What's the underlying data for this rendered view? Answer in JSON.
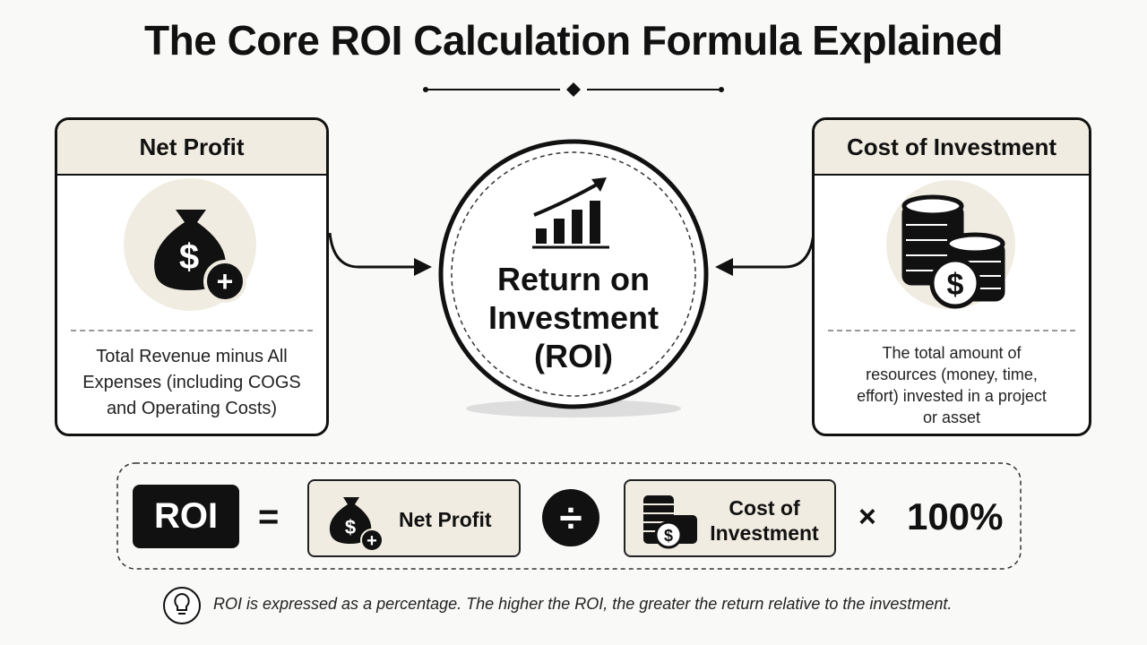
{
  "header": {
    "title": "The Core ROI Calculation Formula Explained"
  },
  "left_card": {
    "title": "Net Profit",
    "description": "Total Revenue minus All Expenses (including COGS and Operating Costs)"
  },
  "center": {
    "label_lines": [
      "Return on",
      "Investment",
      "(ROI)"
    ]
  },
  "right_card": {
    "title": "Cost of Investment",
    "description": "The total amount of resources (money, time, effort) invested in a project or asset"
  },
  "icons": {
    "currency_symbol": "$",
    "plus_symbol": "+"
  },
  "formula": {
    "result": "ROI",
    "equals": "=",
    "numerator": "Net Profit",
    "divide": "÷",
    "denominator_lines": [
      "Cost of",
      "Investment"
    ],
    "times": "×",
    "multiplier": "100%"
  },
  "note": {
    "text": "ROI is expressed as a percentage. The higher the ROI, the greater the return relative to the investment."
  }
}
